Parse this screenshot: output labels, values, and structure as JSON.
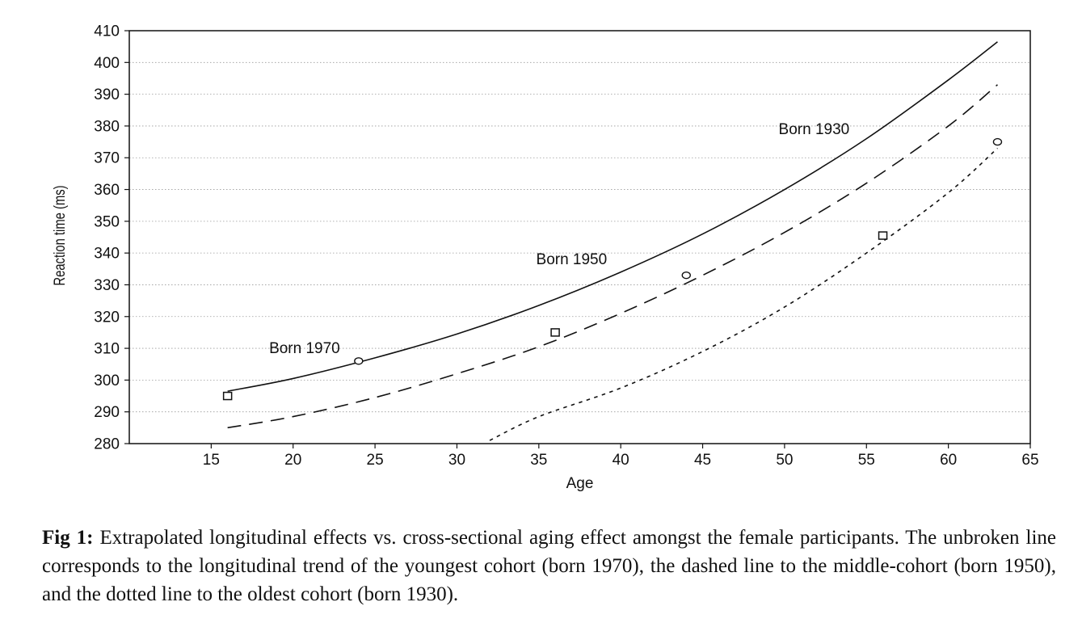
{
  "chart_data": {
    "type": "line",
    "xlabel": "Age",
    "ylabel": "Reaction time (ms)",
    "xlim": [
      10,
      65
    ],
    "ylim": [
      280,
      410
    ],
    "xticks": [
      15,
      20,
      25,
      30,
      35,
      40,
      45,
      50,
      55,
      60,
      65
    ],
    "yticks": [
      280,
      290,
      300,
      310,
      320,
      330,
      340,
      350,
      360,
      370,
      380,
      390,
      400,
      410
    ],
    "grid": true,
    "series": [
      {
        "name": "Born 1970",
        "style": "solid",
        "x": [
          16,
          20,
          25,
          30,
          35,
          40,
          45,
          50,
          55,
          60,
          63
        ],
        "y": [
          296.5,
          300.5,
          307,
          314.5,
          323.5,
          334,
          346,
          360,
          376,
          394.5,
          406.5
        ]
      },
      {
        "name": "Born 1950",
        "style": "dashed",
        "x": [
          16,
          20,
          25,
          30,
          35,
          40,
          45,
          50,
          55,
          60,
          63
        ],
        "y": [
          285,
          288.5,
          294.5,
          302,
          310.5,
          321,
          333,
          346.5,
          362,
          380,
          393
        ]
      },
      {
        "name": "Born 1930",
        "style": "dotted",
        "x": [
          32,
          35,
          40,
          45,
          50,
          55,
          60,
          63
        ],
        "y": [
          281,
          288.5,
          297.5,
          309,
          323,
          340,
          359,
          373
        ]
      }
    ],
    "markers": [
      {
        "shape": "square",
        "x": 16,
        "y": 295
      },
      {
        "shape": "circle",
        "x": 24,
        "y": 306
      },
      {
        "shape": "square",
        "x": 36,
        "y": 315
      },
      {
        "shape": "circle",
        "x": 44,
        "y": 333
      },
      {
        "shape": "square",
        "x": 56,
        "y": 345.5
      },
      {
        "shape": "circle",
        "x": 63,
        "y": 375
      }
    ],
    "annotations": [
      {
        "text": "Born 1970",
        "x": 20.7,
        "y": 308.5
      },
      {
        "text": "Born 1950",
        "x": 37,
        "y": 336.5
      },
      {
        "text": "Born 1930",
        "x": 51.8,
        "y": 377.5
      }
    ]
  },
  "caption": {
    "label": "Fig 1:",
    "text": " Extrapolated longitudinal effects vs. cross-sectional aging effect amongst the female participants. The unbroken line corresponds to the longitudinal trend of the youngest cohort (born 1970), the dashed line to the middle-cohort (born 1950), and the dotted line to the oldest cohort (born 1930)."
  }
}
